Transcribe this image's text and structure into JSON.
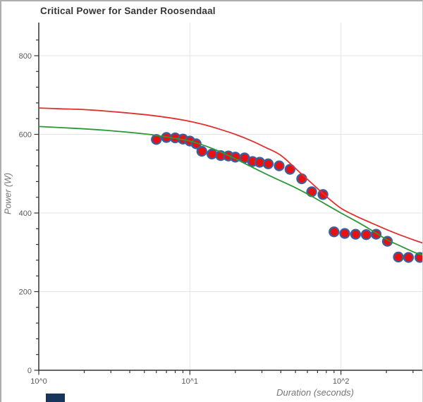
{
  "page": {
    "bottom_left_fragment_color": "#17365d"
  },
  "chart_data": {
    "type": "scatter",
    "title": "Critical Power for Sander Roosendaal",
    "xlabel": "Duration (seconds)",
    "ylabel": "Power (W)",
    "x_scale": "log",
    "xlim": [
      1,
      360
    ],
    "ylim": [
      0,
      884
    ],
    "grid": true,
    "legend": "none",
    "y_major_ticks": [
      0,
      200,
      400,
      600,
      800
    ],
    "y_minor_step": 40,
    "x_major_ticks": [
      1,
      10,
      100
    ],
    "x_tick_labels": [
      "10^0",
      "10^1",
      "10^2"
    ],
    "x_gridline_values": [
      10,
      100
    ],
    "series": [
      {
        "name": "power-duration-points",
        "type": "scatter",
        "marker": "circle",
        "fill": "#e81010",
        "edge": "#3c5f9e",
        "points": [
          [
            6,
            587
          ],
          [
            7,
            592
          ],
          [
            8,
            591
          ],
          [
            9,
            588
          ],
          [
            10,
            583
          ],
          [
            11,
            576
          ],
          [
            12,
            557
          ],
          [
            14,
            550
          ],
          [
            16,
            546
          ],
          [
            18,
            545
          ],
          [
            20,
            542
          ],
          [
            23,
            540
          ],
          [
            26,
            531
          ],
          [
            29,
            529
          ],
          [
            33,
            525
          ],
          [
            39,
            520
          ],
          [
            46,
            511
          ],
          [
            55,
            487
          ],
          [
            64,
            454
          ],
          [
            76,
            447
          ],
          [
            90,
            352
          ],
          [
            106,
            348
          ],
          [
            125,
            346
          ],
          [
            147,
            345
          ],
          [
            171,
            346
          ],
          [
            203,
            328
          ],
          [
            240,
            288
          ],
          [
            280,
            287
          ],
          [
            333,
            287
          ]
        ]
      },
      {
        "name": "cp-model-curve-green",
        "type": "line",
        "color": "#2d9738",
        "points": [
          [
            1,
            620
          ],
          [
            1.41,
            617
          ],
          [
            2,
            614
          ],
          [
            2.82,
            610
          ],
          [
            3.98,
            605
          ],
          [
            5.62,
            599
          ],
          [
            7.94,
            590
          ],
          [
            10,
            583
          ],
          [
            12.6,
            571
          ],
          [
            15.8,
            556
          ],
          [
            20,
            538
          ],
          [
            25.1,
            519
          ],
          [
            31.6,
            500
          ],
          [
            39.8,
            482
          ],
          [
            50.1,
            464
          ],
          [
            63.1,
            444
          ],
          [
            79.4,
            422
          ],
          [
            100,
            400
          ],
          [
            126,
            379
          ],
          [
            158,
            357
          ],
          [
            200,
            333
          ],
          [
            251,
            315
          ],
          [
            316,
            298
          ],
          [
            360,
            292
          ]
        ]
      },
      {
        "name": "cp-model-curve-red",
        "type": "line",
        "color": "#e03030",
        "points": [
          [
            1,
            667
          ],
          [
            1.41,
            665
          ],
          [
            2,
            663
          ],
          [
            2.82,
            659
          ],
          [
            3.98,
            654
          ],
          [
            5.62,
            648
          ],
          [
            7.94,
            640
          ],
          [
            10,
            633
          ],
          [
            12.6,
            624
          ],
          [
            15.8,
            613
          ],
          [
            20,
            600
          ],
          [
            25.1,
            585
          ],
          [
            31.6,
            567
          ],
          [
            39.8,
            547
          ],
          [
            50.1,
            513
          ],
          [
            63.1,
            478
          ],
          [
            79.4,
            443
          ],
          [
            100,
            412
          ],
          [
            126,
            392
          ],
          [
            158,
            375
          ],
          [
            200,
            358
          ],
          [
            251,
            343
          ],
          [
            316,
            329
          ],
          [
            360,
            322
          ]
        ]
      }
    ]
  }
}
